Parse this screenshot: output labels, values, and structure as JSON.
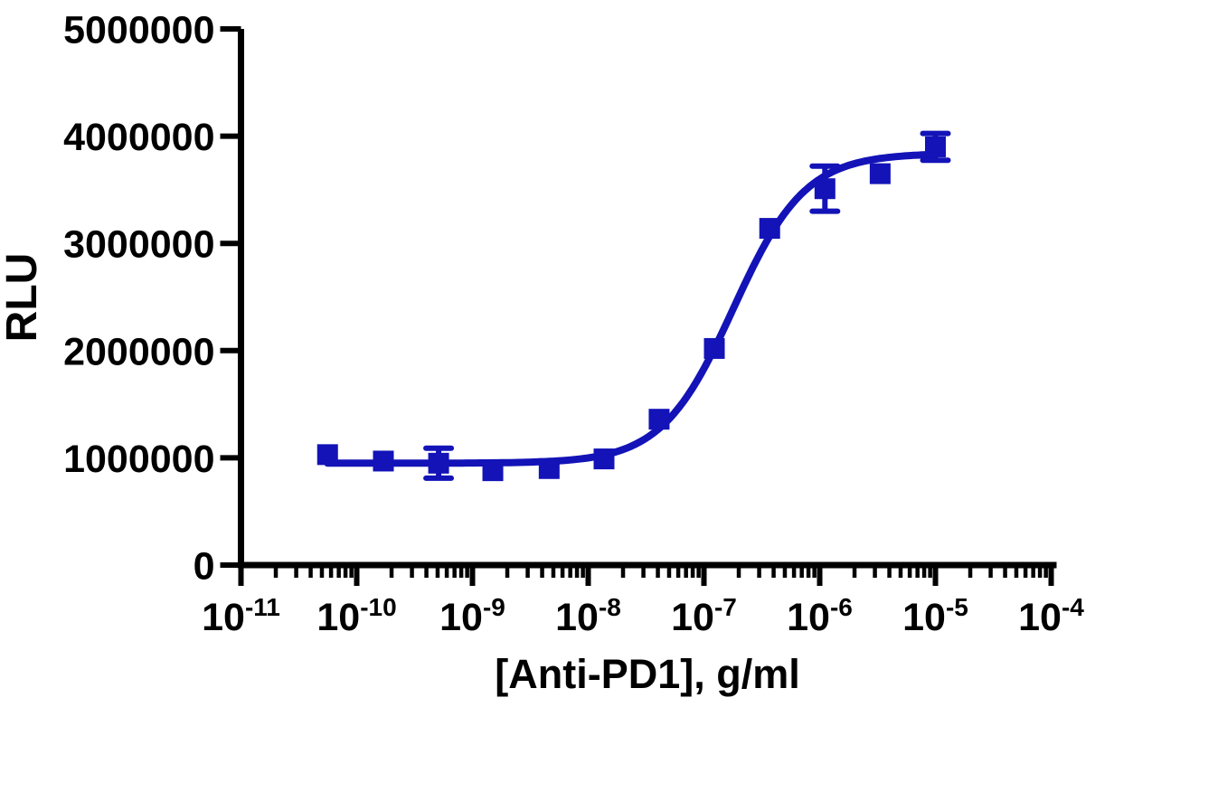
{
  "chart_data": {
    "type": "scatter",
    "title": "",
    "x_label": "[Anti-PD1], g/ml",
    "y_label": "RLU",
    "x_scale": "log10",
    "x_axis": {
      "tick_exponents": [
        -11,
        -10,
        -9,
        -8,
        -7,
        -6,
        -5,
        -4
      ],
      "range_exponents": [
        -11,
        -4
      ],
      "minor_ticks": "log-spaced 2-9 within each decade",
      "tick_label_base": "10"
    },
    "y_axis": {
      "ticks": [
        0,
        1000000,
        2000000,
        3000000,
        4000000,
        5000000
      ],
      "range": [
        0,
        5000000
      ],
      "grid": false
    },
    "legend": "none",
    "series": [
      {
        "marker": "square",
        "color": "#1313b8",
        "points": [
          {
            "x": 5.6e-11,
            "y": 1030000,
            "yerr": 0
          },
          {
            "x": 1.7e-10,
            "y": 970000,
            "yerr": 0
          },
          {
            "x": 5.1e-10,
            "y": 950000,
            "yerr": 140000
          },
          {
            "x": 1.5e-09,
            "y": 880000,
            "yerr": 0
          },
          {
            "x": 4.6e-09,
            "y": 900000,
            "yerr": 0
          },
          {
            "x": 1.37e-08,
            "y": 990000,
            "yerr": 0
          },
          {
            "x": 4.1e-08,
            "y": 1360000,
            "yerr": 0
          },
          {
            "x": 1.23e-07,
            "y": 2020000,
            "yerr": 0
          },
          {
            "x": 3.7e-07,
            "y": 3140000,
            "yerr": 0
          },
          {
            "x": 1.11e-06,
            "y": 3510000,
            "yerr": 210000
          },
          {
            "x": 3.33e-06,
            "y": 3650000,
            "yerr": 0
          },
          {
            "x": 1e-05,
            "y": 3900000,
            "yerr": 125000
          }
        ],
        "fit_curve": {
          "model": "4PL",
          "bottom": 950000,
          "top": 3840000,
          "ec50": 1.8e-07,
          "hill": 1.4
        }
      }
    ]
  }
}
